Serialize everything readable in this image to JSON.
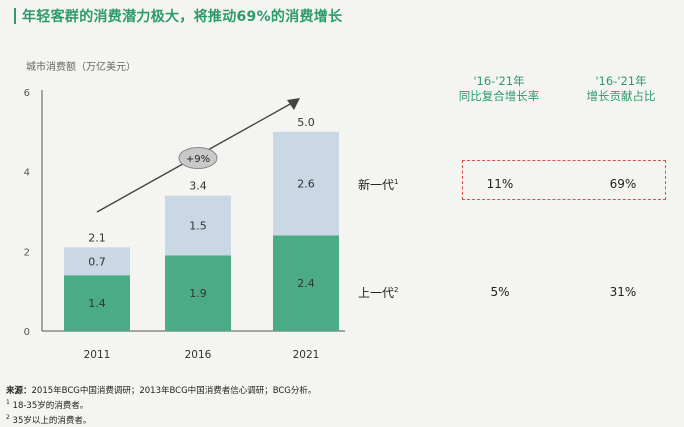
{
  "title": "年轻客群的消费潜力极大，将推动69%的消费增长",
  "y_axis_label": "城市消费额（万亿美元）",
  "table": {
    "headers": [
      "'16-'21年\n同比复合增长率",
      "'16-'21年\n增长贡献占比"
    ],
    "rows": [
      {
        "label": "新一代",
        "note": "1",
        "values": [
          "11%",
          "69%"
        ],
        "highlighted": true
      },
      {
        "label": "上一代",
        "note": "2",
        "values": [
          "5%",
          "31%"
        ],
        "highlighted": false
      }
    ]
  },
  "footer": {
    "source_key": "来源：",
    "source_text": "2015年BCG中国消费调研；2013年BCG中国消费者信心调研；BCG分析。",
    "notes": [
      {
        "mark": "1",
        "text": "18-35岁的消费者。"
      },
      {
        "mark": "2",
        "text": "35岁以上的消费者。"
      }
    ]
  },
  "chart_data": {
    "type": "bar",
    "stacked": true,
    "categories": [
      "2011",
      "2016",
      "2021"
    ],
    "series": [
      {
        "values": [
          1.4,
          1.9,
          2.4
        ],
        "color": "#4cab87"
      },
      {
        "values": [
          0.7,
          1.5,
          2.6
        ],
        "color": "#c9d8e4"
      }
    ],
    "totals": [
      2.1,
      3.4,
      5.0
    ],
    "total_labels": [
      "2.1",
      "3.4",
      "5.0"
    ],
    "ylim": [
      0,
      6
    ],
    "yticks": [
      0,
      2,
      4,
      6
    ],
    "grid": false,
    "annotation": {
      "text": "+9%",
      "type": "trend-arrow"
    }
  }
}
